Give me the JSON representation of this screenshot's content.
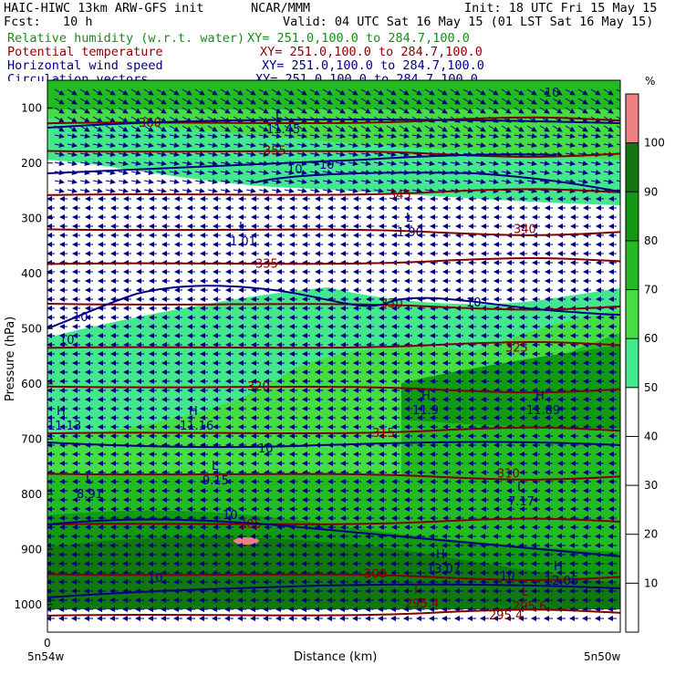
{
  "header": {
    "model": "HAIC-HIWC 13km ARW-GFS init",
    "org": "NCAR/MMM",
    "init": "Init: 18 UTC Fri 15 May 15",
    "fcst": "Fcst:   10 h",
    "valid": "Valid: 04 UTC Sat 16 May 15 (01 LST Sat 16 May 15)",
    "fields": [
      {
        "name": "Relative humidity (w.r.t. water)",
        "xy": "XY= 251.0,100.0 to 284.7,100.0",
        "color": "#1a8a1a"
      },
      {
        "name": "Potential temperature",
        "xy": "XY= 251.0,100.0 to 284.7,100.0",
        "color": "#8b0000"
      },
      {
        "name": "Horizontal wind speed",
        "xy": "XY= 251.0,100.0 to 284.7,100.0",
        "color": "#000080"
      },
      {
        "name": "Circulation vectors",
        "xy": "XY= 251.0,100.0 to 284.7,100.0",
        "color": "#000080"
      }
    ]
  },
  "chart_data": {
    "type": "heatmap",
    "description_fields": [
      "relative humidity shading",
      "potential temperature contours",
      "wind speed contours",
      "circulation vectors"
    ],
    "xlabel": "Distance (km)",
    "ylabel": "Pressure (hPa)",
    "x_tick_labels": [
      "0"
    ],
    "x_end_labels": [
      "5n54w",
      "5n50w"
    ],
    "y_ticks": [
      100,
      200,
      300,
      400,
      500,
      600,
      700,
      800,
      900,
      1000
    ],
    "y_range": [
      50,
      1050
    ],
    "colorbar": {
      "unit": "%",
      "levels": [
        10,
        20,
        30,
        40,
        50,
        60,
        70,
        80,
        90,
        100
      ],
      "colors": [
        "#ffffff",
        "#ffffff",
        "#ffffff",
        "#ffffff",
        "#ffffff",
        "#44e88c",
        "#44dd44",
        "#22bb22",
        "#119911",
        "#117711",
        "#f08080"
      ]
    },
    "theta_contours": [
      {
        "value": 360,
        "p": 128
      },
      {
        "value": 355,
        "p": 178
      },
      {
        "value": 345,
        "p": 258
      },
      {
        "value": 340,
        "p": 320
      },
      {
        "value": 335,
        "p": 383
      },
      {
        "value": 330,
        "p": 455
      },
      {
        "value": 325,
        "p": 535
      },
      {
        "value": 320,
        "p": 605
      },
      {
        "value": 315,
        "p": 690
      },
      {
        "value": 310,
        "p": 763
      },
      {
        "value": 305,
        "p": 855
      },
      {
        "value": 300,
        "p": 945
      },
      {
        "value": 295.4,
        "p": 1020
      }
    ],
    "extrema": [
      {
        "type": "H",
        "value": "11.13"
      },
      {
        "type": "H",
        "value": "11.16"
      },
      {
        "type": "H",
        "value": "11.9"
      },
      {
        "type": "H",
        "value": "11.89"
      },
      {
        "type": "L",
        "value": "1.01"
      },
      {
        "type": "L",
        "value": "1.90"
      },
      {
        "type": "L",
        "value": "8.91"
      },
      {
        "type": "L",
        "value": "9.15"
      },
      {
        "type": "L",
        "value": "7.17"
      },
      {
        "type": "H",
        "value": "13.07"
      },
      {
        "type": "H",
        "value": "12.05"
      },
      {
        "type": "L",
        "value": "295.4"
      },
      {
        "type": "L",
        "value": "295.6"
      },
      {
        "type": "L",
        "value": "11.45"
      }
    ],
    "wind_speed_labels": [
      "10",
      "10",
      "10",
      "10",
      "10",
      "10",
      "10",
      "10",
      "10",
      "10"
    ]
  }
}
